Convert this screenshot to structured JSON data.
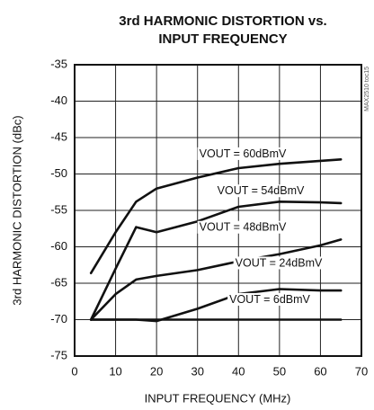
{
  "chart_data": {
    "type": "line",
    "title": [
      "3rd HARMONIC DISTORTION vs.",
      "INPUT FREQUENCY"
    ],
    "x_label": "INPUT FREQUENCY (MHz)",
    "y_label": "3rd HARMONIC DISTORTION (dBc)",
    "note": "MAX2510 toc15",
    "x": [
      4,
      10,
      15,
      20,
      30,
      40,
      50,
      60,
      65
    ],
    "series": [
      {
        "name": "VOUT = 60dBmV",
        "color": "#111111",
        "values": [
          -63.6,
          -58,
          -53.8,
          -52,
          -50.5,
          -49.2,
          -48.6,
          -48.2,
          -48
        ]
      },
      {
        "name": "VOUT = 54dBmV",
        "color": "#111111",
        "values": [
          -70,
          -63,
          -57.3,
          -58,
          -56.5,
          -54.5,
          -53.8,
          -53.9,
          -54
        ]
      },
      {
        "name": "VOUT = 48dBmV",
        "color": "#111111",
        "values": [
          -70,
          -66.5,
          -64.5,
          -64,
          -63.2,
          -62,
          -61,
          -59.8,
          -59
        ]
      },
      {
        "name": "VOUT = 24dBmV",
        "color": "#111111",
        "values": [
          -70,
          -70,
          -70,
          -70.2,
          -68.5,
          -66.5,
          -65.8,
          -66,
          -66
        ]
      },
      {
        "name": "VOUT = 6dBmV",
        "color": "#111111",
        "values": [
          -70,
          -70,
          -70,
          -70,
          -70,
          -70,
          -70,
          -70,
          -70
        ]
      }
    ],
    "xlim": [
      0,
      70
    ],
    "xticks": [
      0,
      10,
      20,
      30,
      40,
      50,
      60,
      70
    ],
    "ylim": [
      -75,
      -35
    ],
    "yticks": [
      -75,
      -70,
      -65,
      -60,
      -55,
      -50,
      -45,
      -40,
      -35
    ],
    "grid": true
  }
}
